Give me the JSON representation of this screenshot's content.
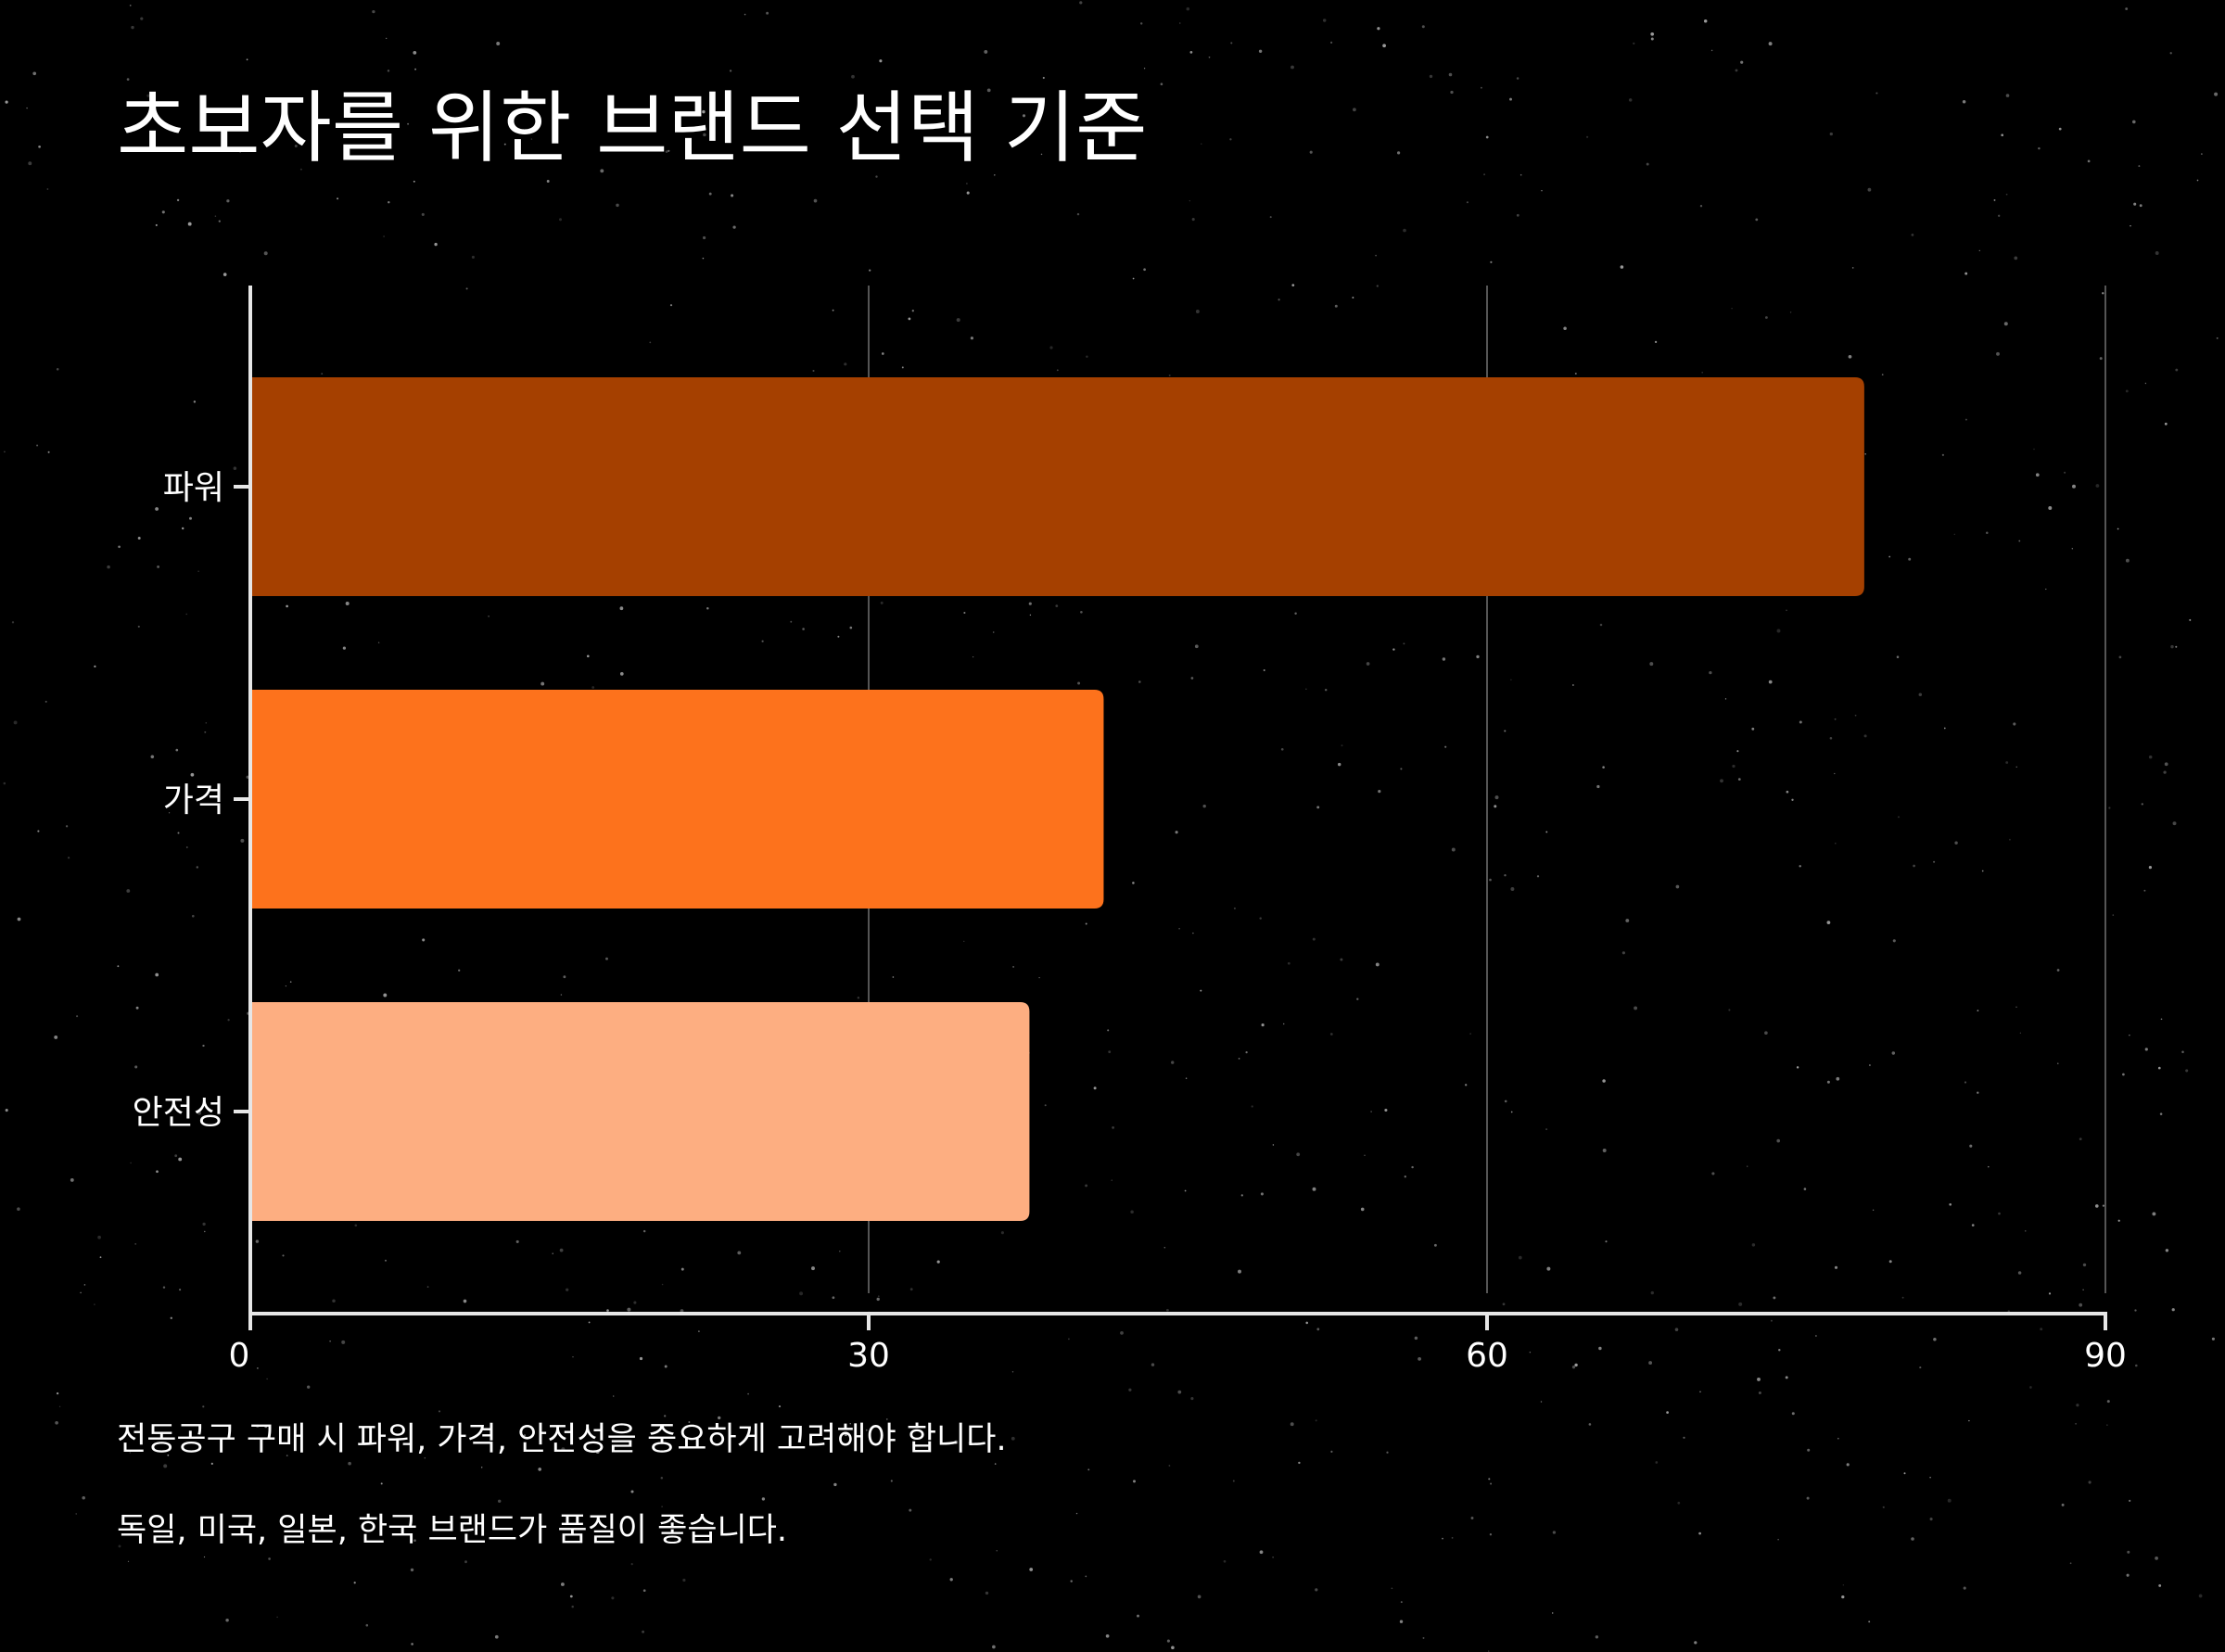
{
  "title": "초보자를 위한 브랜드 선택 기준",
  "notes": [
    "전동공구 구매 시 파워, 가격, 안전성을 중요하게 고려해야 합니다.",
    "독일, 미국, 일본, 한국 브랜드가 품질이 좋습니다."
  ],
  "colors": {
    "background": "#000000",
    "axis": "#e6e6e6",
    "grid": "#555555"
  },
  "chart_data": {
    "type": "bar",
    "orientation": "horizontal",
    "categories": [
      "파워",
      "가격",
      "안전성"
    ],
    "values": [
      78.3,
      41.4,
      37.8
    ],
    "bar_colors": [
      "#a54000",
      "#fd721c",
      "#fdae81"
    ],
    "xlim": [
      0,
      90
    ],
    "xticks": [
      "0",
      "30",
      "60",
      "90"
    ],
    "grid": "vertical",
    "xlabel": "",
    "ylabel": ""
  }
}
